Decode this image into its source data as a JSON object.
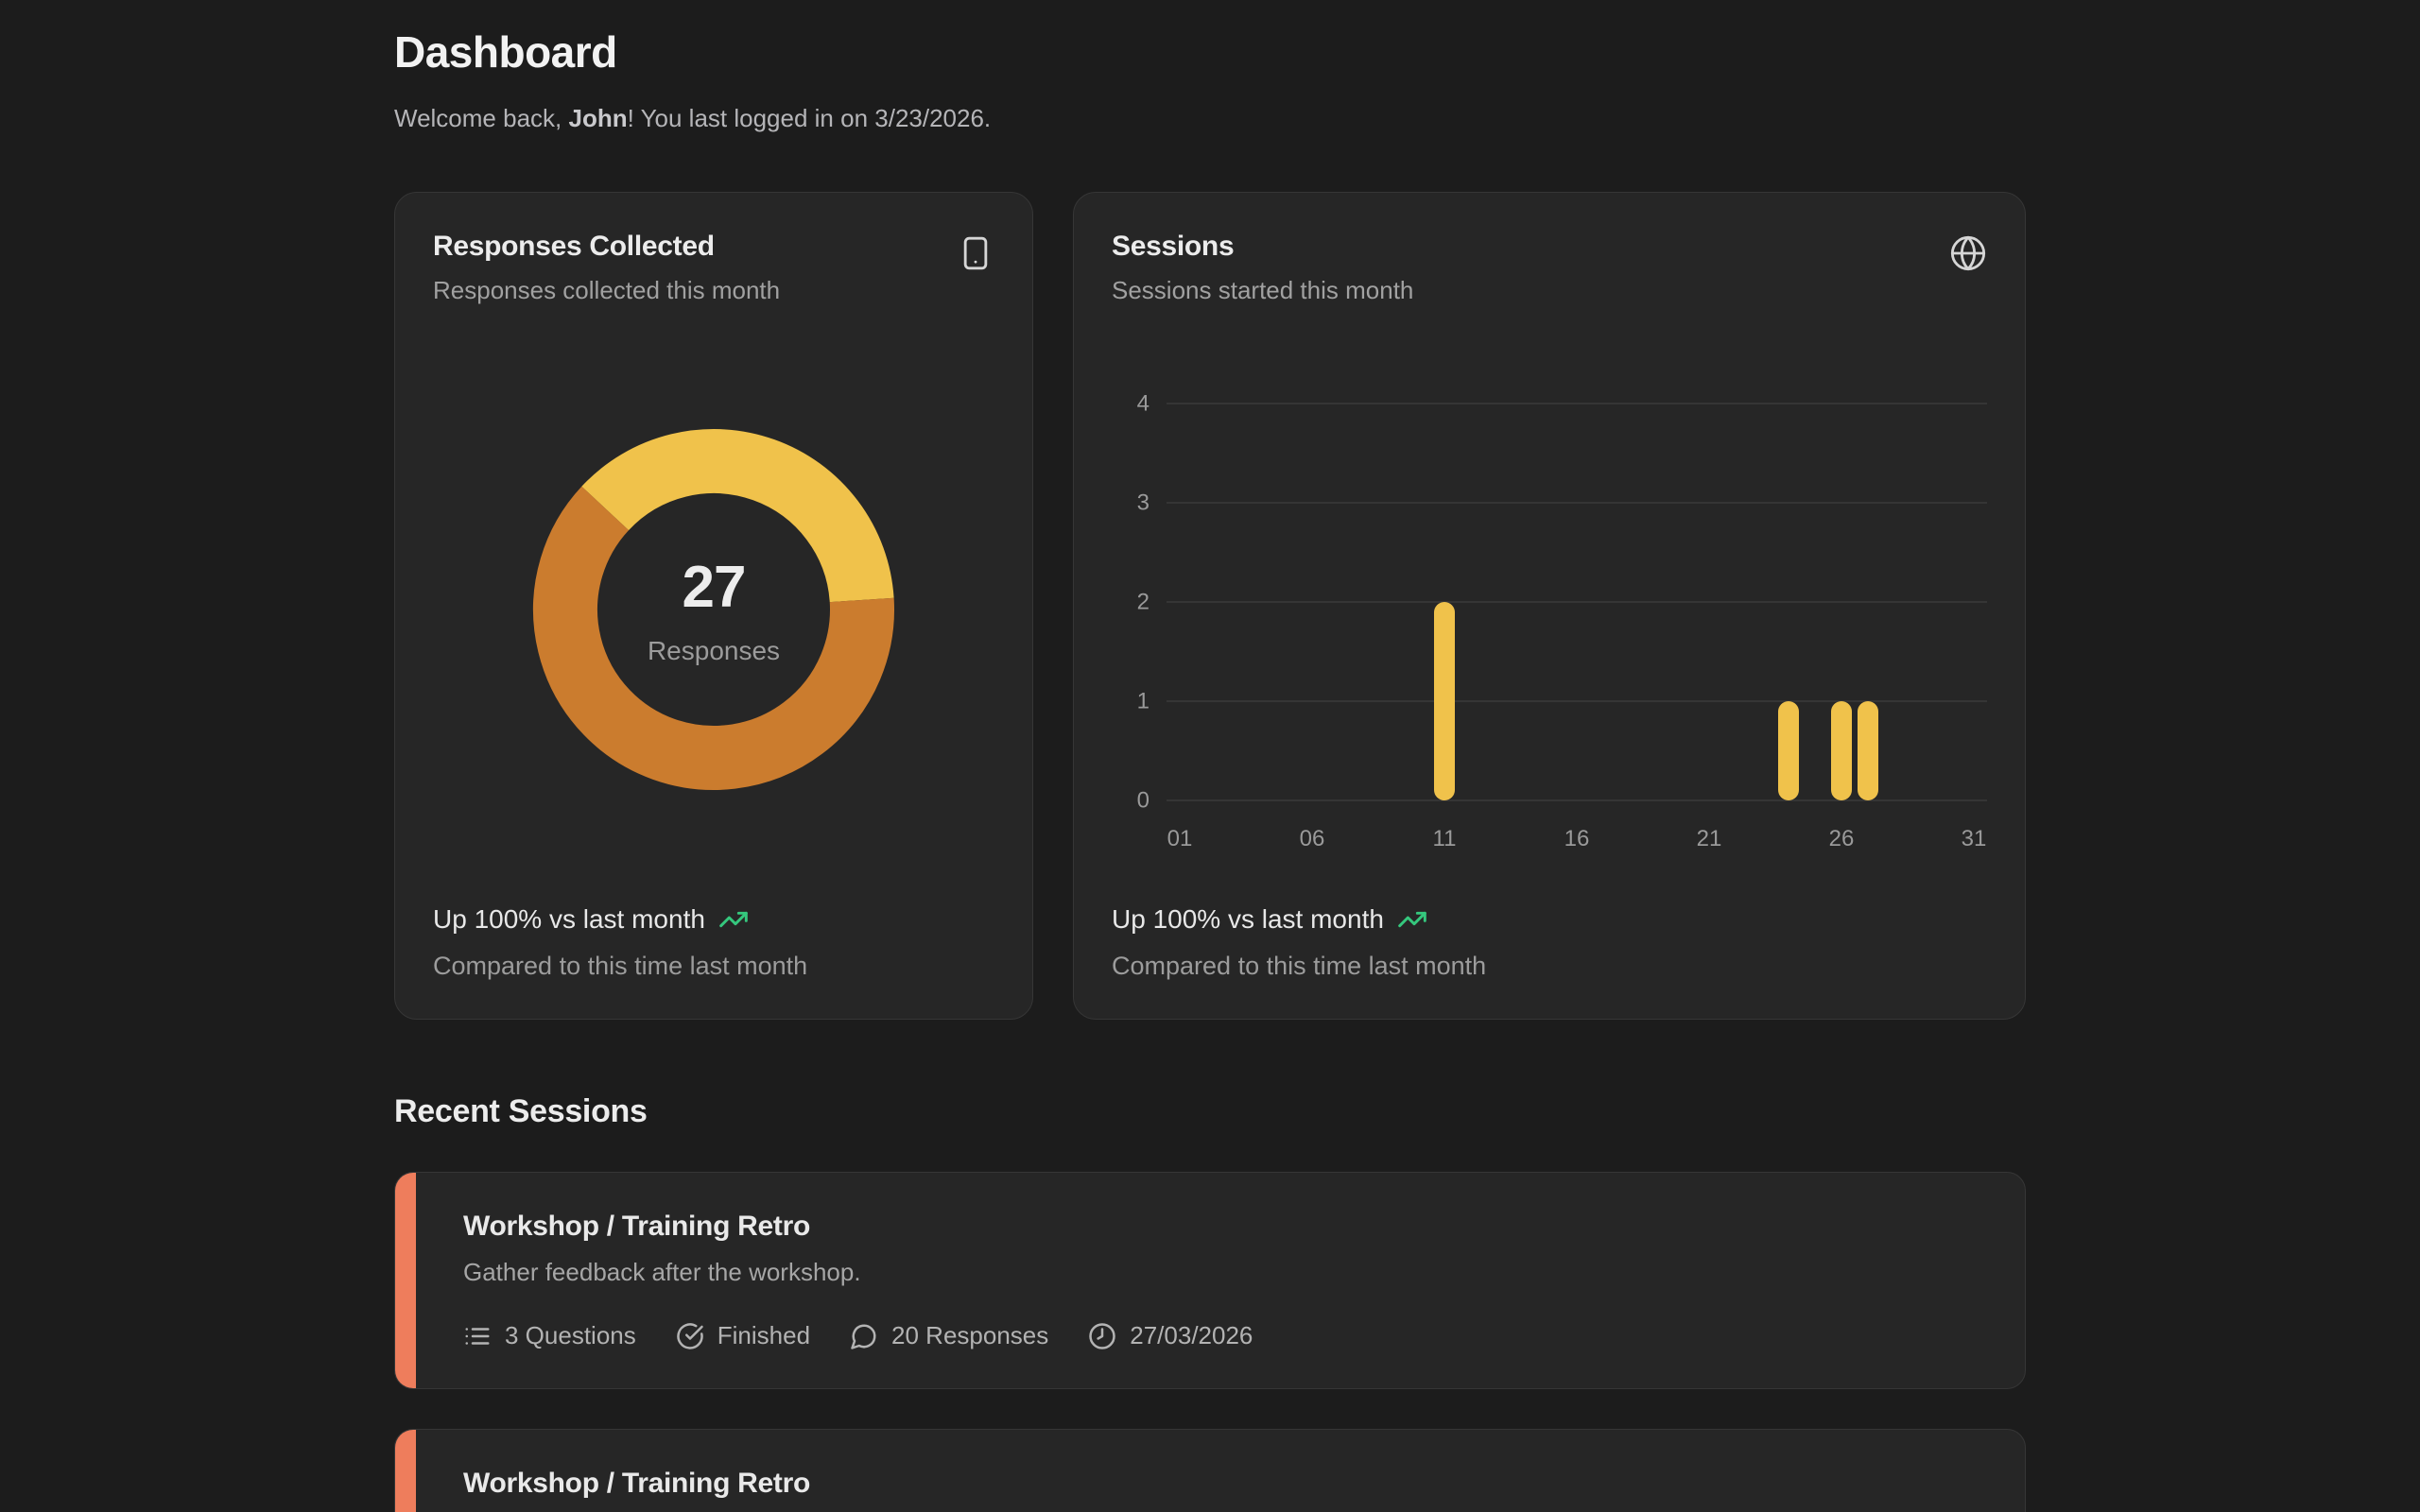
{
  "header": {
    "title": "Dashboard",
    "welcome_prefix": "Welcome back, ",
    "welcome_user": "John",
    "welcome_suffix": "! You last logged in on 3/23/2026."
  },
  "responses_card": {
    "title": "Responses Collected",
    "subtitle": "Responses collected this month",
    "icon": "smartphone-icon",
    "center_value": "27",
    "center_label": "Responses",
    "trend_text": "Up 100% vs last month",
    "trend_icon": "trending-up-icon",
    "trend_sub": "Compared to this time last month"
  },
  "sessions_card": {
    "title": "Sessions",
    "subtitle": "Sessions started this month",
    "icon": "globe-icon",
    "trend_text": "Up 100% vs last month",
    "trend_icon": "trending-up-icon",
    "trend_sub": "Compared to this time last month"
  },
  "recent_sessions": {
    "heading": "Recent Sessions",
    "items": [
      {
        "title": "Workshop / Training Retro",
        "description": "Gather feedback after the workshop.",
        "questions": "3 Questions",
        "status": "Finished",
        "responses": "20 Responses",
        "date": "27/03/2026",
        "accent_color": "#EE7D5C"
      },
      {
        "title": "Workshop / Training Retro",
        "accent_color": "#EE7D5C"
      }
    ]
  },
  "colors": {
    "page_background": "#1C1C1C",
    "card_background": "#262626",
    "donut_yellow": "#F0C24B",
    "donut_orange": "#CB7C2E",
    "bar_yellow": "#F0C24B",
    "trend_green": "#35C77D",
    "session_accent": "#EE7D5C"
  },
  "chart_data": [
    {
      "type": "pie",
      "variant": "donut",
      "title": "Responses Collected",
      "center_value": 27,
      "center_label": "Responses",
      "start_angle_deg": -47,
      "segments": [
        {
          "name": "yellow-segment",
          "value": 10,
          "color": "#F0C24B"
        },
        {
          "name": "orange-segment",
          "value": 17,
          "color": "#CB7C2E"
        }
      ],
      "legend": "none"
    },
    {
      "type": "bar",
      "title": "Sessions started this month",
      "x_days_in_month": 31,
      "x_tick_days": [
        1,
        6,
        11,
        16,
        21,
        26,
        31
      ],
      "x_tick_labels": [
        "01",
        "06",
        "11",
        "16",
        "21",
        "26",
        "31"
      ],
      "ylim": [
        0,
        4
      ],
      "y_ticks": [
        0,
        1,
        2,
        3,
        4
      ],
      "bars": [
        {
          "day": 11,
          "value": 2
        },
        {
          "day": 24,
          "value": 1
        },
        {
          "day": 26,
          "value": 1
        },
        {
          "day": 27,
          "value": 1
        }
      ],
      "bar_color": "#F0C24B",
      "grid": true,
      "grid_color": "#3A3A3A",
      "axis_text_color": "#9A9A9A"
    }
  ]
}
